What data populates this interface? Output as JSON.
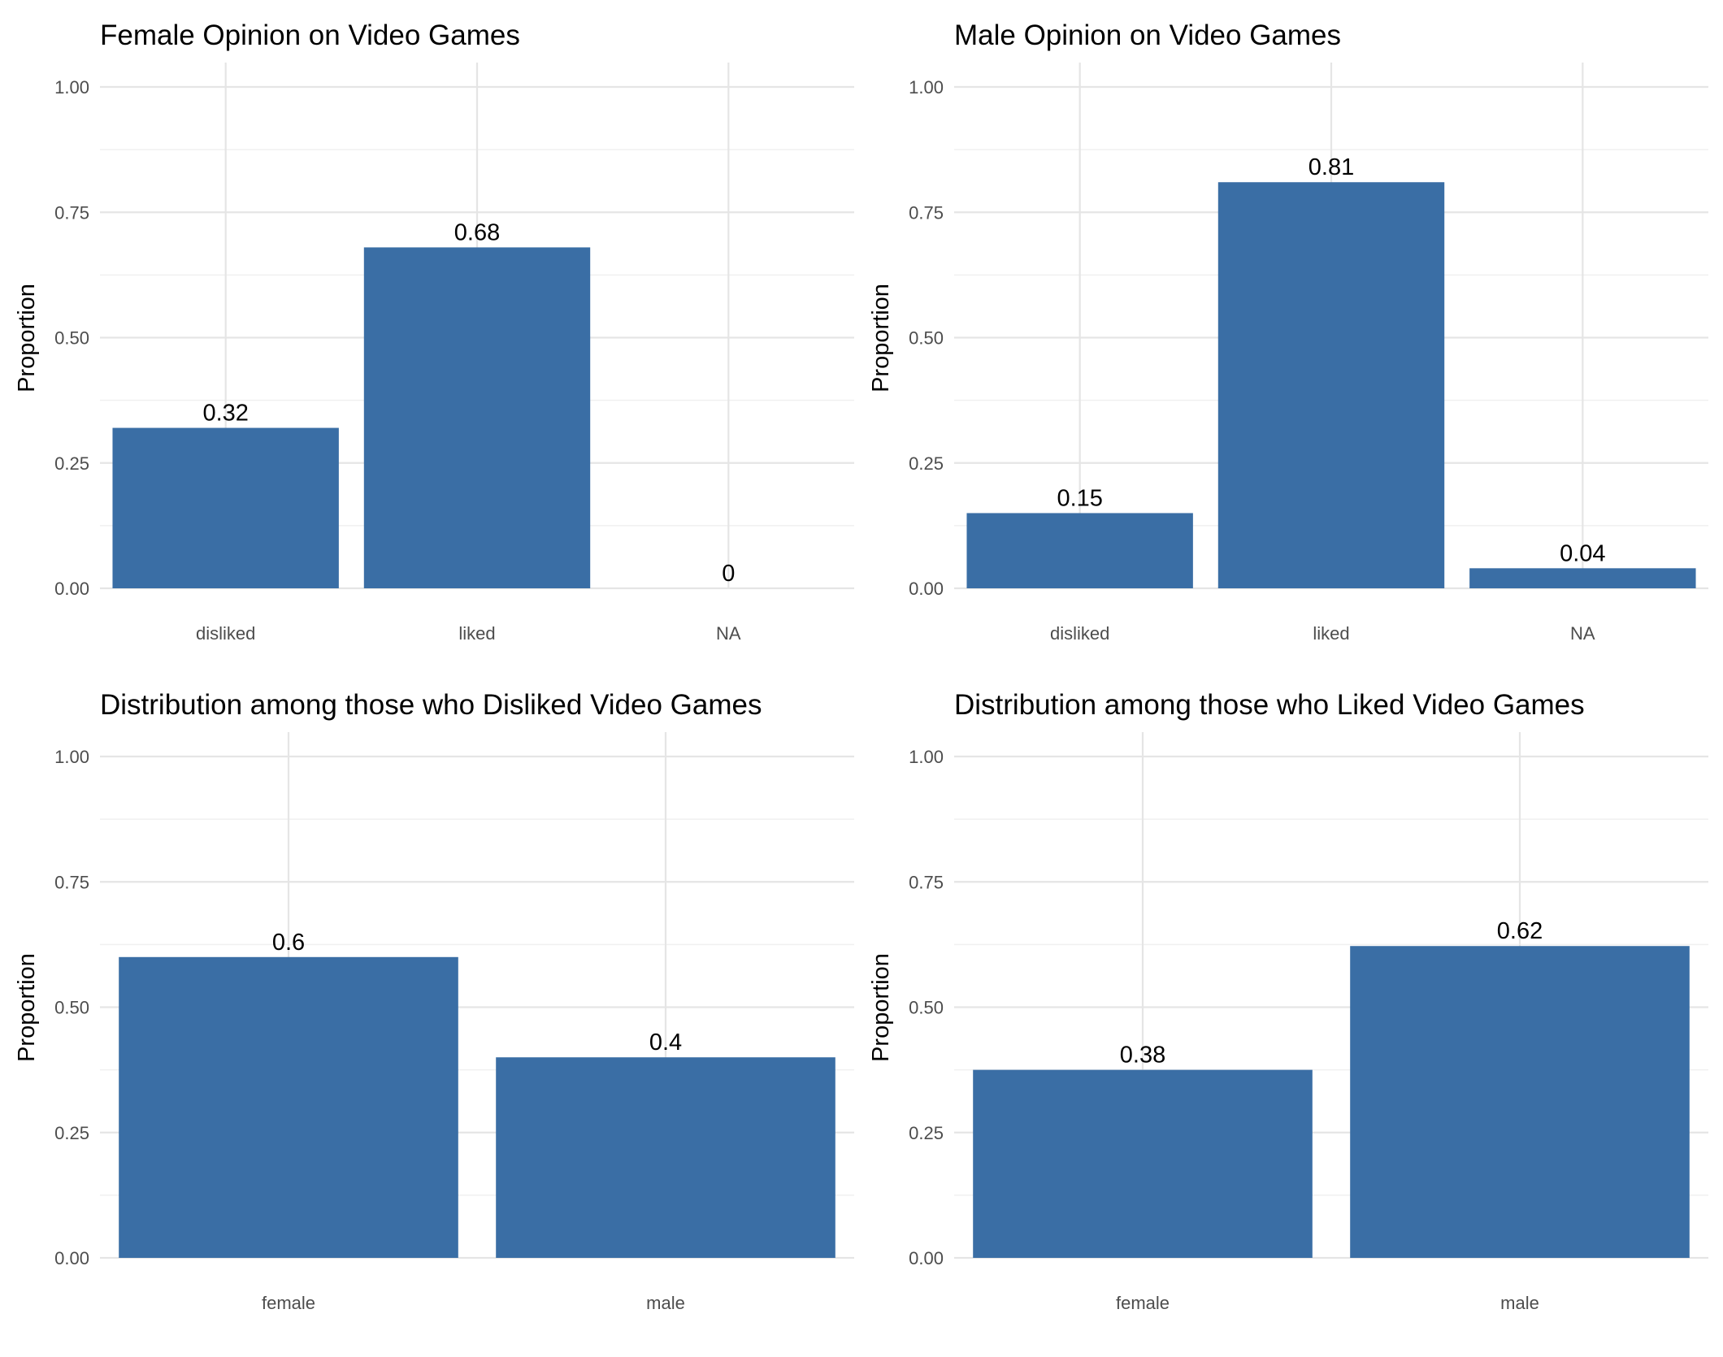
{
  "style": {
    "bar_color": "#3a6ea5"
  },
  "chart_data": [
    {
      "type": "bar",
      "title": "Female Opinion on Video Games",
      "ylabel": "Proportion",
      "xlabel": "",
      "categories": [
        "disliked",
        "liked",
        "NA"
      ],
      "values": [
        0.32,
        0.68,
        0.0
      ],
      "data_labels": [
        "0.32",
        "0.68",
        "0"
      ],
      "yticks": [
        "0.00",
        "0.25",
        "0.50",
        "0.75",
        "1.00"
      ],
      "ylim": [
        0,
        1.04
      ],
      "grid": true,
      "legend": "none"
    },
    {
      "type": "bar",
      "title": "Male Opinion on Video Games",
      "ylabel": "Proportion",
      "xlabel": "",
      "categories": [
        "disliked",
        "liked",
        "NA"
      ],
      "values": [
        0.15,
        0.81,
        0.04
      ],
      "data_labels": [
        "0.15",
        "0.81",
        "0.04"
      ],
      "yticks": [
        "0.00",
        "0.25",
        "0.50",
        "0.75",
        "1.00"
      ],
      "ylim": [
        0,
        1.04
      ],
      "grid": true,
      "legend": "none"
    },
    {
      "type": "bar",
      "title": "Distribution among those who Disliked Video Games",
      "ylabel": "Proportion",
      "xlabel": "",
      "categories": [
        "female",
        "male"
      ],
      "values": [
        0.6,
        0.4
      ],
      "data_labels": [
        "0.6",
        "0.4"
      ],
      "yticks": [
        "0.00",
        "0.25",
        "0.50",
        "0.75",
        "1.00"
      ],
      "ylim": [
        0,
        1.04
      ],
      "grid": true,
      "legend": "none"
    },
    {
      "type": "bar",
      "title": "Distribution among those who Liked Video Games",
      "ylabel": "Proportion",
      "xlabel": "",
      "categories": [
        "female",
        "male"
      ],
      "values": [
        0.375,
        0.622
      ],
      "data_labels": [
        "0.38",
        "0.62"
      ],
      "yticks": [
        "0.00",
        "0.25",
        "0.50",
        "0.75",
        "1.00"
      ],
      "ylim": [
        0,
        1.04
      ],
      "grid": true,
      "legend": "none"
    }
  ]
}
